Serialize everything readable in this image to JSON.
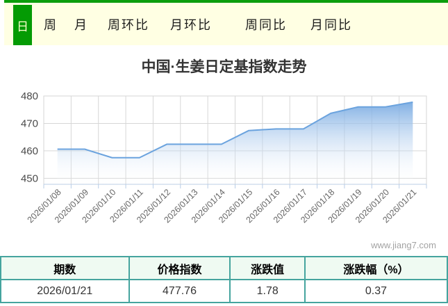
{
  "tabs": {
    "active_label": "日",
    "items": [
      "周",
      "月",
      "周环比",
      "月环比",
      "周同比",
      "月同比"
    ]
  },
  "title": "中国·生姜日定基指数走势",
  "watermark": "www.jiang7.com",
  "colors": {
    "tab_green": "#049B04",
    "tab_bar_bg": "#FFFFE3",
    "table_border": "#45A49E",
    "table_header_bg": "#EFFAF2",
    "line_blue": "#6BA3DE"
  },
  "chart_data": {
    "type": "area",
    "title": "中国·生姜日定基指数走势",
    "x": [
      "2026/01/08",
      "2026/01/09",
      "2026/01/10",
      "2026/01/11",
      "2026/01/12",
      "2026/01/13",
      "2026/01/14",
      "2026/01/15",
      "2026/01/16",
      "2026/01/17",
      "2026/01/18",
      "2026/01/19",
      "2026/01/20",
      "2026/01/21"
    ],
    "values": [
      460.6,
      460.6,
      457.5,
      457.5,
      462.4,
      462.4,
      462.4,
      467.4,
      468.0,
      468.0,
      473.7,
      476.0,
      476.0,
      477.76
    ],
    "ylim": [
      447.8,
      480
    ],
    "yticks": [
      450,
      460,
      470,
      480
    ],
    "grid": true,
    "legend": "none",
    "line_color": "#6BA3DE",
    "fill_top_color": "rgba(122,171,226,0.95)",
    "fill_bottom_color": "rgba(255,255,255,0.05)",
    "grid_color": "#D6D6D6",
    "tick_color": "#B9CDE6",
    "ylabel_color": "#4a4a4a",
    "xlabel_color": "#666666"
  },
  "table": {
    "headers": [
      "期数",
      "价格指数",
      "涨跌值",
      "涨跌幅（%）"
    ],
    "rows": [
      [
        "2026/01/21",
        "477.76",
        "1.78",
        "0.37"
      ]
    ]
  }
}
